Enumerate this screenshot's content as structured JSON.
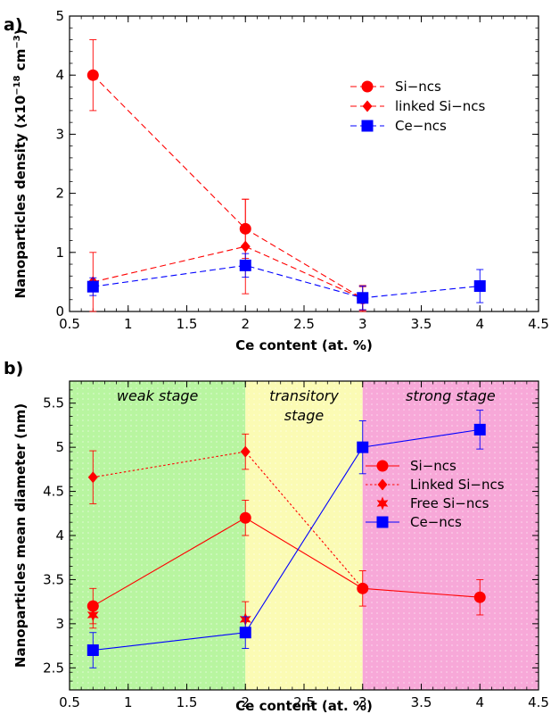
{
  "chart_data": [
    {
      "panel_label": "a)",
      "type": "line",
      "xlabel": "Ce content (at. %)",
      "ylabel": "Nanoparticles density (x10",
      "ylabel_exp": "−18",
      "ylabel_unit": " cm",
      "ylabel_unit_exp": "−3",
      "ylabel_close": ")",
      "xlim": [
        0.5,
        4.5
      ],
      "ylim": [
        0,
        5
      ],
      "xticks": [
        "0.5",
        "1",
        "1.5",
        "2",
        "2.5",
        "3",
        "3.5",
        "4",
        "4.5"
      ],
      "yticks": [
        "0",
        "1",
        "2",
        "3",
        "4",
        "5"
      ],
      "legend_position": "upper-right",
      "series": [
        {
          "name": "Si−ncs",
          "marker": "circle",
          "color": "#ff0000",
          "line": "dashed",
          "x": [
            0.7,
            2,
            3
          ],
          "y": [
            4.0,
            1.4,
            0.22
          ],
          "err": [
            0.6,
            0.5,
            0.22
          ]
        },
        {
          "name": "linked Si−ncs",
          "marker": "diamond",
          "color": "#ff0000",
          "line": "dashed",
          "x": [
            0.7,
            2,
            3
          ],
          "y": [
            0.5,
            1.1,
            0.22
          ],
          "err": [
            0.5,
            0.8,
            0.2
          ]
        },
        {
          "name": "Ce−ncs",
          "marker": "square",
          "color": "#0000ff",
          "line": "dashed",
          "x": [
            0.7,
            2,
            3,
            4
          ],
          "y": [
            0.42,
            0.78,
            0.23,
            0.43
          ],
          "err": [
            0.15,
            0.2,
            0.2,
            0.28
          ]
        }
      ]
    },
    {
      "panel_label": "b)",
      "type": "line",
      "xlabel": "Ce content (at. %)",
      "ylabel": "Nanoparticles mean diameter (nm)",
      "xlim": [
        0.5,
        4.5
      ],
      "ylim": [
        2.25,
        5.75
      ],
      "xticks": [
        "0.5",
        "1",
        "1.5",
        "2",
        "2.5",
        "3",
        "3.5",
        "4",
        "4.5"
      ],
      "yticks": [
        "2.5",
        "3",
        "3.5",
        "4",
        "4.5",
        "5",
        "5.5"
      ],
      "legend_position": "right",
      "stages": [
        {
          "label_lines": [
            "weak stage"
          ],
          "x_range": [
            0.5,
            2
          ],
          "color": "#b8f5a0"
        },
        {
          "label_lines": [
            "transitory",
            "stage"
          ],
          "x_range": [
            2,
            3
          ],
          "color": "#fbfbb4"
        },
        {
          "label_lines": [
            "strong stage"
          ],
          "x_range": [
            3,
            4.5
          ],
          "color": "#f7a8d8"
        }
      ],
      "series": [
        {
          "name": "Si−ncs",
          "marker": "circle",
          "color": "#ff0000",
          "line": "solid",
          "x": [
            0.7,
            2,
            3,
            4
          ],
          "y": [
            3.2,
            4.2,
            3.4,
            3.3
          ],
          "err": [
            0.2,
            0.2,
            0.2,
            0.2
          ]
        },
        {
          "name": "Linked Si−ncs",
          "marker": "diamond",
          "color": "#ff0000",
          "line": "dotted",
          "x": [
            0.7,
            2,
            3
          ],
          "y": [
            4.66,
            4.95,
            3.4
          ],
          "err": [
            0.3,
            0.2,
            0.0
          ]
        },
        {
          "name": "Free Si−ncs",
          "marker": "star",
          "color": "#ff0000",
          "line": "none",
          "x": [
            0.7,
            2
          ],
          "y": [
            3.1,
            3.05
          ],
          "err": [
            0.15,
            0.2
          ]
        },
        {
          "name": "Ce−ncs",
          "marker": "square",
          "color": "#0000ff",
          "line": "solid",
          "x": [
            0.7,
            2,
            3,
            4
          ],
          "y": [
            2.7,
            2.9,
            5.0,
            5.2
          ],
          "err": [
            0.2,
            0.18,
            0.3,
            0.22
          ]
        }
      ]
    }
  ]
}
